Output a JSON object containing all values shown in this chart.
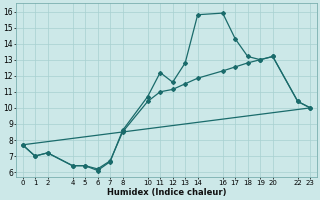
{
  "xlabel": "Humidex (Indice chaleur)",
  "xlim": [
    -0.5,
    23.5
  ],
  "ylim": [
    5.7,
    16.5
  ],
  "xtick_groups": [
    [
      0,
      1,
      2
    ],
    [
      4,
      5,
      6,
      7,
      8
    ],
    [
      10,
      11,
      12,
      13,
      14
    ],
    [
      16,
      17,
      18,
      19,
      20
    ],
    [
      22,
      23
    ]
  ],
  "yticks": [
    6,
    7,
    8,
    9,
    10,
    11,
    12,
    13,
    14,
    15,
    16
  ],
  "bg_color": "#cce8e8",
  "grid_color": "#a8d0d0",
  "line_color": "#1a6b6b",
  "line1_x": [
    0,
    1,
    2,
    4,
    5,
    6,
    7,
    8,
    10,
    11,
    12,
    13,
    14,
    16,
    17,
    18,
    19,
    20,
    22,
    23
  ],
  "line1_y": [
    7.7,
    7.0,
    7.2,
    6.4,
    6.4,
    6.1,
    6.65,
    8.6,
    10.7,
    12.2,
    11.6,
    12.8,
    15.8,
    15.9,
    14.3,
    13.2,
    13.0,
    13.2,
    10.4,
    10.0
  ],
  "line2_x": [
    0,
    1,
    2,
    4,
    5,
    6,
    7,
    8,
    10,
    11,
    12,
    13,
    14,
    16,
    17,
    18,
    19,
    20,
    22,
    23
  ],
  "line2_y": [
    7.7,
    7.0,
    7.2,
    6.4,
    6.4,
    6.2,
    6.7,
    8.5,
    10.4,
    11.0,
    11.15,
    11.5,
    11.85,
    12.3,
    12.55,
    12.8,
    13.0,
    13.2,
    10.4,
    10.0
  ],
  "line3_x": [
    0,
    23
  ],
  "line3_y": [
    7.7,
    10.0
  ]
}
